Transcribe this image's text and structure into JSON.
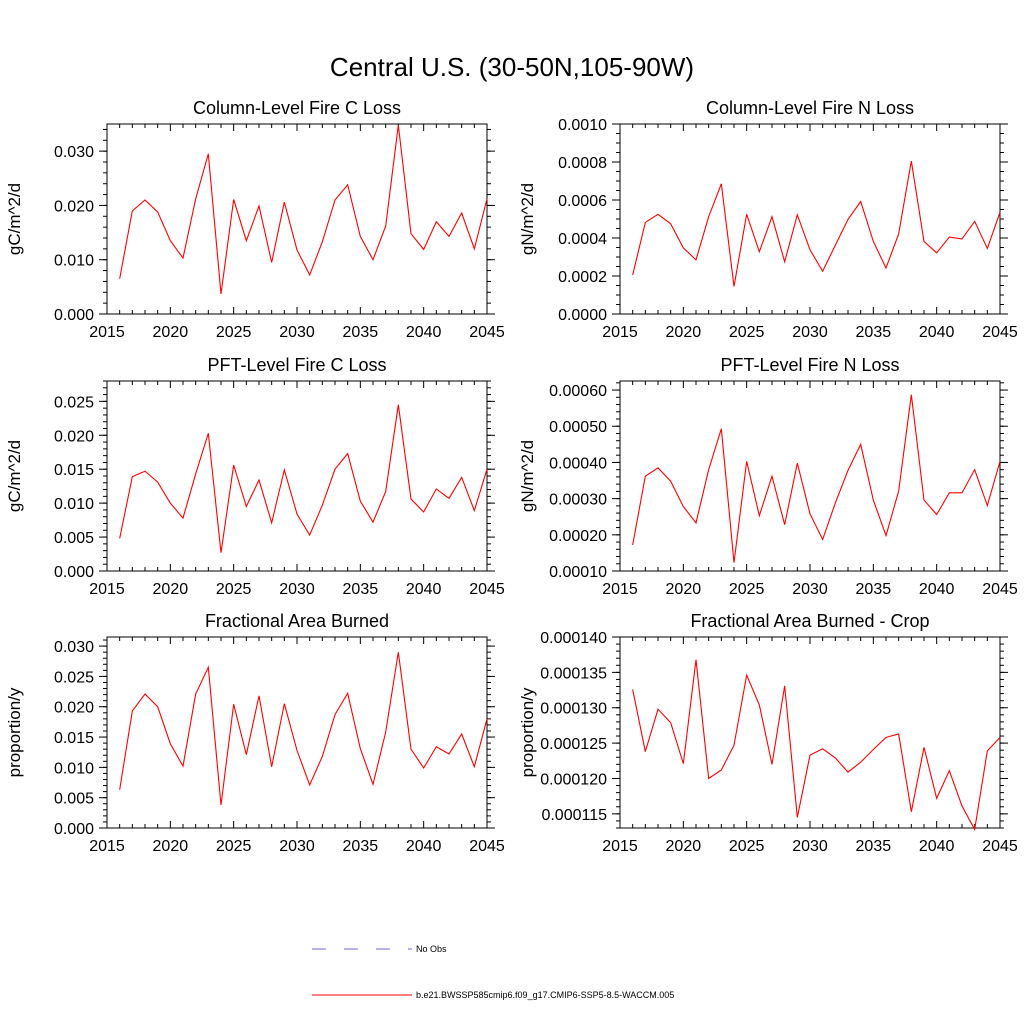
{
  "title": "Central U.S. (30-50N,105-90W)",
  "colors": {
    "series": "#ff0000",
    "no_obs": "#6a6ad0",
    "axis": "#000000"
  },
  "legend": {
    "items": [
      {
        "label": "No Obs",
        "style": "dashed",
        "color": "#6a6ad0"
      },
      {
        "label": "b.e21.BWSSP585cmip6.f09_g17.CMIP6-SSP5-8.5-WACCM.005",
        "style": "solid",
        "color": "#ff0000"
      }
    ]
  },
  "chart_data": [
    {
      "type": "line",
      "title": "Column-Level Fire C Loss",
      "ylabel": "gC/m^2/d",
      "xlim": [
        2015,
        2045
      ],
      "ylim": [
        0,
        0.035
      ],
      "xticks": [
        2015,
        2020,
        2025,
        2030,
        2035,
        2040,
        2045
      ],
      "xtick_labels": [
        "2015",
        "2020",
        "2025",
        "2030",
        "2035",
        "2040",
        "2045"
      ],
      "yticks": [
        0,
        0.01,
        0.02,
        0.03
      ],
      "ytick_labels": [
        "0.000",
        "0.010",
        "0.020",
        "0.030"
      ],
      "yminor": 0.002,
      "x": [
        2016,
        2017,
        2018,
        2019,
        2020,
        2021,
        2022,
        2023,
        2024,
        2025,
        2026,
        2027,
        2028,
        2029,
        2030,
        2031,
        2032,
        2033,
        2034,
        2035,
        2036,
        2037,
        2038,
        2039,
        2040,
        2041,
        2042,
        2043,
        2044,
        2045
      ],
      "series": [
        {
          "name": "b.e21.BWSSP585cmip6.f09_g17.CMIP6-SSP5-8.5-WACCM.005",
          "values": [
            0.0065,
            0.019,
            0.021,
            0.0188,
            0.0135,
            0.0103,
            0.0212,
            0.0295,
            0.0037,
            0.0211,
            0.0135,
            0.0199,
            0.0095,
            0.0206,
            0.0118,
            0.0072,
            0.0133,
            0.021,
            0.0238,
            0.0143,
            0.01,
            0.0162,
            0.0348,
            0.0148,
            0.0119,
            0.017,
            0.0143,
            0.0186,
            0.012,
            0.0212
          ]
        }
      ]
    },
    {
      "type": "line",
      "title": "Column-Level Fire N Loss",
      "ylabel": "gN/m^2/d",
      "xlim": [
        2015,
        2045
      ],
      "ylim": [
        0,
        0.001
      ],
      "xticks": [
        2015,
        2020,
        2025,
        2030,
        2035,
        2040,
        2045
      ],
      "xtick_labels": [
        "2015",
        "2020",
        "2025",
        "2030",
        "2035",
        "2040",
        "2045"
      ],
      "yticks": [
        0,
        0.0002,
        0.0004,
        0.0006,
        0.0008,
        0.001
      ],
      "ytick_labels": [
        "0.0000",
        "0.0002",
        "0.0004",
        "0.0006",
        "0.0008",
        "0.0010"
      ],
      "yminor": 5e-05,
      "x": [
        2016,
        2017,
        2018,
        2019,
        2020,
        2021,
        2022,
        2023,
        2024,
        2025,
        2026,
        2027,
        2028,
        2029,
        2030,
        2031,
        2032,
        2033,
        2034,
        2035,
        2036,
        2037,
        2038,
        2039,
        2040,
        2041,
        2042,
        2043,
        2044,
        2045
      ],
      "series": [
        {
          "name": "b.e21.BWSSP585cmip6.f09_g17.CMIP6-SSP5-8.5-WACCM.005",
          "values": [
            0.000205,
            0.000482,
            0.000525,
            0.000475,
            0.000348,
            0.000285,
            0.000512,
            0.000685,
            0.000145,
            0.000525,
            0.000328,
            0.000512,
            0.000275,
            0.000522,
            0.000338,
            0.000225,
            0.000362,
            0.000498,
            0.000592,
            0.000382,
            0.000242,
            0.000422,
            0.000805,
            0.000382,
            0.000322,
            0.000405,
            0.000395,
            0.000488,
            0.000345,
            0.000535
          ]
        }
      ]
    },
    {
      "type": "line",
      "title": "PFT-Level Fire C Loss",
      "ylabel": "gC/m^2/d",
      "xlim": [
        2015,
        2045
      ],
      "ylim": [
        0,
        0.028
      ],
      "xticks": [
        2015,
        2020,
        2025,
        2030,
        2035,
        2040,
        2045
      ],
      "xtick_labels": [
        "2015",
        "2020",
        "2025",
        "2030",
        "2035",
        "2040",
        "2045"
      ],
      "yticks": [
        0,
        0.005,
        0.01,
        0.015,
        0.02,
        0.025
      ],
      "ytick_labels": [
        "0.000",
        "0.005",
        "0.010",
        "0.015",
        "0.020",
        "0.025"
      ],
      "yminor": 0.001,
      "x": [
        2016,
        2017,
        2018,
        2019,
        2020,
        2021,
        2022,
        2023,
        2024,
        2025,
        2026,
        2027,
        2028,
        2029,
        2030,
        2031,
        2032,
        2033,
        2034,
        2035,
        2036,
        2037,
        2038,
        2039,
        2040,
        2041,
        2042,
        2043,
        2044,
        2045
      ],
      "series": [
        {
          "name": "b.e21.BWSSP585cmip6.f09_g17.CMIP6-SSP5-8.5-WACCM.005",
          "values": [
            0.0048,
            0.0139,
            0.0147,
            0.0131,
            0.01,
            0.0078,
            0.0143,
            0.0203,
            0.0027,
            0.0156,
            0.0095,
            0.0134,
            0.0071,
            0.0149,
            0.0084,
            0.0053,
            0.0097,
            0.015,
            0.0173,
            0.0103,
            0.0072,
            0.0117,
            0.0245,
            0.0106,
            0.0087,
            0.0121,
            0.0107,
            0.0138,
            0.0089,
            0.015
          ]
        }
      ]
    },
    {
      "type": "line",
      "title": "PFT-Level Fire N Loss",
      "ylabel": "gN/m^2/d",
      "xlim": [
        2015,
        2045
      ],
      "ylim": [
        0.0001,
        0.000625
      ],
      "xticks": [
        2015,
        2020,
        2025,
        2030,
        2035,
        2040,
        2045
      ],
      "xtick_labels": [
        "2015",
        "2020",
        "2025",
        "2030",
        "2035",
        "2040",
        "2045"
      ],
      "yticks": [
        0.0001,
        0.0002,
        0.0003,
        0.0004,
        0.0005,
        0.0006
      ],
      "ytick_labels": [
        "0.00010",
        "0.00020",
        "0.00030",
        "0.00040",
        "0.00050",
        "0.00060"
      ],
      "yminor": 2e-05,
      "x": [
        2016,
        2017,
        2018,
        2019,
        2020,
        2021,
        2022,
        2023,
        2024,
        2025,
        2026,
        2027,
        2028,
        2029,
        2030,
        2031,
        2032,
        2033,
        2034,
        2035,
        2036,
        2037,
        2038,
        2039,
        2040,
        2041,
        2042,
        2043,
        2044,
        2045
      ],
      "series": [
        {
          "name": "b.e21.BWSSP585cmip6.f09_g17.CMIP6-SSP5-8.5-WACCM.005",
          "values": [
            0.000172,
            0.000362,
            0.000385,
            0.000348,
            0.000278,
            0.000233,
            0.00038,
            0.000493,
            0.000123,
            0.000403,
            0.000253,
            0.000362,
            0.000228,
            0.000398,
            0.000258,
            0.000187,
            0.000288,
            0.000378,
            0.00045,
            0.000296,
            0.000198,
            0.000321,
            0.000587,
            0.000296,
            0.000256,
            0.000316,
            0.000316,
            0.00038,
            0.000281,
            0.000403
          ]
        }
      ]
    },
    {
      "type": "line",
      "title": "Fractional Area Burned",
      "ylabel": "proportion/y",
      "xlim": [
        2015,
        2045
      ],
      "ylim": [
        0,
        0.0315
      ],
      "xticks": [
        2015,
        2020,
        2025,
        2030,
        2035,
        2040,
        2045
      ],
      "xtick_labels": [
        "2015",
        "2020",
        "2025",
        "2030",
        "2035",
        "2040",
        "2045"
      ],
      "yticks": [
        0,
        0.005,
        0.01,
        0.015,
        0.02,
        0.025,
        0.03
      ],
      "ytick_labels": [
        "0.000",
        "0.005",
        "0.010",
        "0.015",
        "0.020",
        "0.025",
        "0.030"
      ],
      "yminor": 0.001,
      "x": [
        2016,
        2017,
        2018,
        2019,
        2020,
        2021,
        2022,
        2023,
        2024,
        2025,
        2026,
        2027,
        2028,
        2029,
        2030,
        2031,
        2032,
        2033,
        2034,
        2035,
        2036,
        2037,
        2038,
        2039,
        2040,
        2041,
        2042,
        2043,
        2044,
        2045
      ],
      "series": [
        {
          "name": "b.e21.BWSSP585cmip6.f09_g17.CMIP6-SSP5-8.5-WACCM.005",
          "values": [
            0.0063,
            0.0193,
            0.0221,
            0.02,
            0.0139,
            0.0102,
            0.0221,
            0.0265,
            0.0038,
            0.0204,
            0.0121,
            0.0218,
            0.0101,
            0.0205,
            0.0128,
            0.0071,
            0.0118,
            0.0187,
            0.0222,
            0.0131,
            0.0072,
            0.0158,
            0.029,
            0.013,
            0.0099,
            0.0134,
            0.0122,
            0.0155,
            0.0101,
            0.018
          ]
        }
      ]
    },
    {
      "type": "line",
      "title": "Fractional Area Burned - Crop",
      "ylabel": "proportion/y",
      "xlim": [
        2015,
        2045
      ],
      "ylim": [
        0.000113,
        0.00014
      ],
      "xticks": [
        2015,
        2020,
        2025,
        2030,
        2035,
        2040,
        2045
      ],
      "xtick_labels": [
        "2015",
        "2020",
        "2025",
        "2030",
        "2035",
        "2040",
        "2045"
      ],
      "yticks": [
        0.000115,
        0.00012,
        0.000125,
        0.00013,
        0.000135,
        0.00014
      ],
      "ytick_labels": [
        "0.000115",
        "0.000120",
        "0.000125",
        "0.000130",
        "0.000135",
        "0.000140"
      ],
      "yminor": 1e-06,
      "x": [
        2016,
        2017,
        2018,
        2019,
        2020,
        2021,
        2022,
        2023,
        2024,
        2025,
        2026,
        2027,
        2028,
        2029,
        2030,
        2031,
        2032,
        2033,
        2034,
        2035,
        2036,
        2037,
        2038,
        2039,
        2040,
        2041,
        2042,
        2043,
        2044,
        2045
      ],
      "series": [
        {
          "name": "b.e21.BWSSP585cmip6.f09_g17.CMIP6-SSP5-8.5-WACCM.005",
          "values": [
            0.0001326,
            0.0001238,
            0.0001298,
            0.0001279,
            0.0001221,
            0.0001368,
            0.00012,
            0.0001212,
            0.0001247,
            0.0001346,
            0.0001304,
            0.000122,
            0.0001331,
            0.0001145,
            0.0001233,
            0.0001242,
            0.0001229,
            0.0001209,
            0.0001223,
            0.0001241,
            0.0001258,
            0.0001263,
            0.0001153,
            0.0001244,
            0.0001172,
            0.0001211,
            0.0001161,
            0.0001128,
            0.0001239,
            0.0001258
          ]
        }
      ]
    }
  ]
}
